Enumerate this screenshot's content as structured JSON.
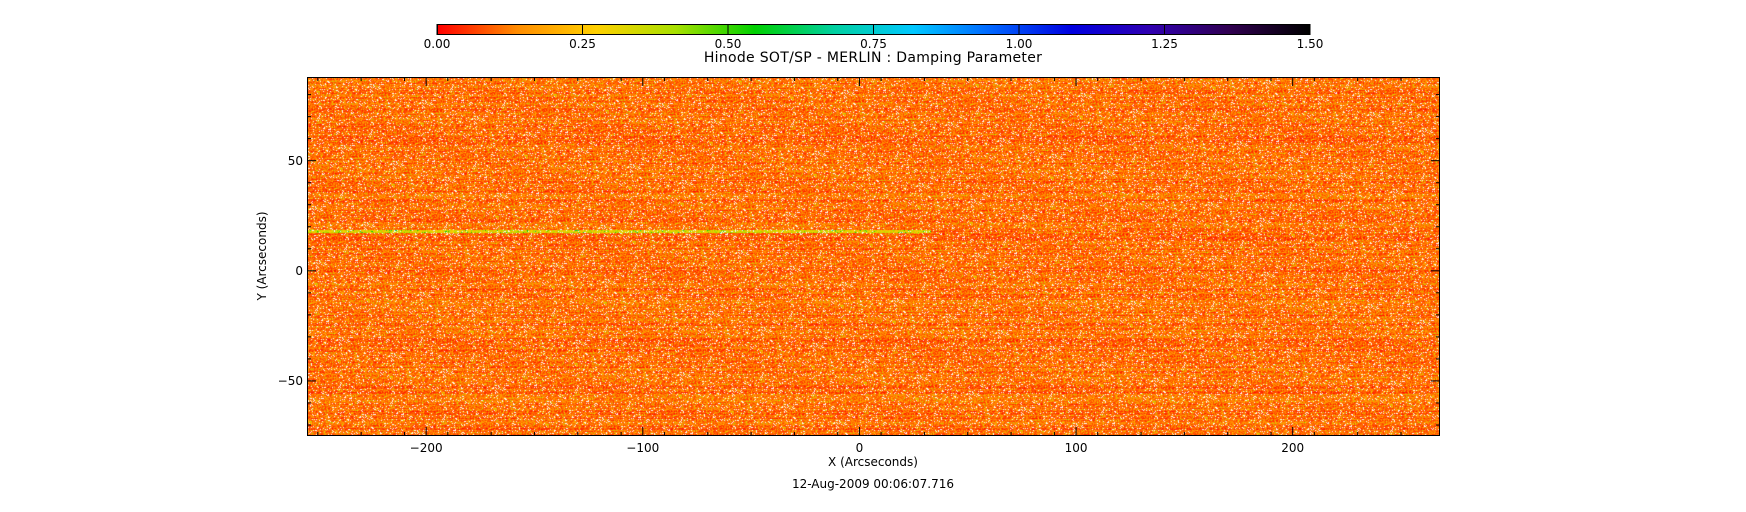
{
  "colorbar": {
    "ticks": [
      "0.00",
      "0.25",
      "0.50",
      "0.75",
      "1.00",
      "1.25",
      "1.50"
    ],
    "range": [
      0.0,
      1.5
    ],
    "colormap": [
      "#ff0000",
      "#ff8c00",
      "#ffd000",
      "#a8e000",
      "#00d000",
      "#00d0a0",
      "#00c8ff",
      "#0064ff",
      "#0000e0",
      "#3000b0",
      "#300050",
      "#000000"
    ]
  },
  "chart_data": {
    "type": "heatmap",
    "title": "Hinode SOT/SP - MERLIN : Damping Parameter",
    "xlabel": "X (Arcseconds)",
    "ylabel": "Y (Arcseconds)",
    "subtitle": "12-Aug-2009 00:06:07.716",
    "xlim": [
      -255,
      268
    ],
    "ylim": [
      -75,
      88
    ],
    "x_ticks": [
      -200,
      -100,
      0,
      100,
      200
    ],
    "x_tick_labels": [
      "−200",
      "−100",
      "0",
      "100",
      "200"
    ],
    "y_ticks": [
      -50,
      0,
      50
    ],
    "y_tick_labels": [
      "−50",
      "0",
      "50"
    ],
    "value_range": [
      0.0,
      1.5
    ],
    "typical_value": 0.1,
    "notes_visible": "Values mostly 0.0-0.25 with scattered white (no-data) pixels; a brighter streak near Y=18"
  }
}
